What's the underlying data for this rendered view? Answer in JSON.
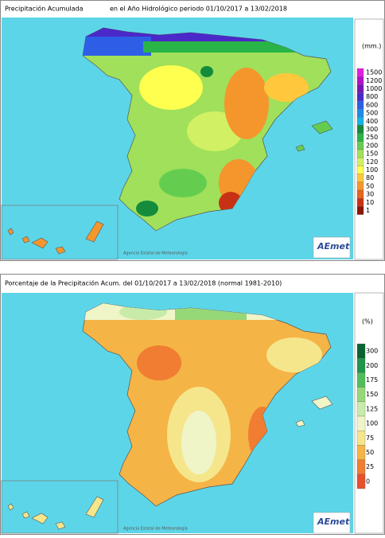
{
  "panels": [
    {
      "title": "Precipitación Acumulada",
      "period": "en el Año Hidrológico  periodo 01/10/2017 a 13/02/2018",
      "units": "(mm.)",
      "legend": [
        {
          "label": "1500",
          "color": "#e21ee0"
        },
        {
          "label": "1200",
          "color": "#b40fc8"
        },
        {
          "label": "1000",
          "color": "#7814b4"
        },
        {
          "label": "800",
          "color": "#4b28c8"
        },
        {
          "label": "600",
          "color": "#2e5ee6"
        },
        {
          "label": "500",
          "color": "#1e8ce8"
        },
        {
          "label": "400",
          "color": "#14b4e6"
        },
        {
          "label": "300",
          "color": "#148c3c"
        },
        {
          "label": "250",
          "color": "#28b446"
        },
        {
          "label": "200",
          "color": "#64cd50"
        },
        {
          "label": "150",
          "color": "#a0e05a"
        },
        {
          "label": "120",
          "color": "#d2f064"
        },
        {
          "label": "100",
          "color": "#ffff50"
        },
        {
          "label": "80",
          "color": "#ffc83c"
        },
        {
          "label": "50",
          "color": "#f5962d"
        },
        {
          "label": "30",
          "color": "#e6641e"
        },
        {
          "label": "10",
          "color": "#c83214"
        },
        {
          "label": "1",
          "color": "#8c1405"
        }
      ],
      "credit": "Agencia Estatal de Meteorología",
      "logo": "AEmet"
    },
    {
      "title": "Porcentaje de la Precipitación Acum. del 01/10/2017 a  13/02/2018  (normal 1981-2010)",
      "units": "(%)",
      "legend": [
        {
          "label": "300",
          "color": "#0a6432"
        },
        {
          "label": "200",
          "color": "#1e964b"
        },
        {
          "label": "175",
          "color": "#50be5a"
        },
        {
          "label": "150",
          "color": "#96d778"
        },
        {
          "label": "125",
          "color": "#c8ebaa"
        },
        {
          "label": "100",
          "color": "#f0f5c8"
        },
        {
          "label": "75",
          "color": "#f5e68c"
        },
        {
          "label": "50",
          "color": "#f5b446"
        },
        {
          "label": "25",
          "color": "#f07d32"
        },
        {
          "label": "0",
          "color": "#e6502d"
        }
      ],
      "credit": "Agencia Estatal de Meteorología",
      "logo": "AEmet"
    }
  ]
}
